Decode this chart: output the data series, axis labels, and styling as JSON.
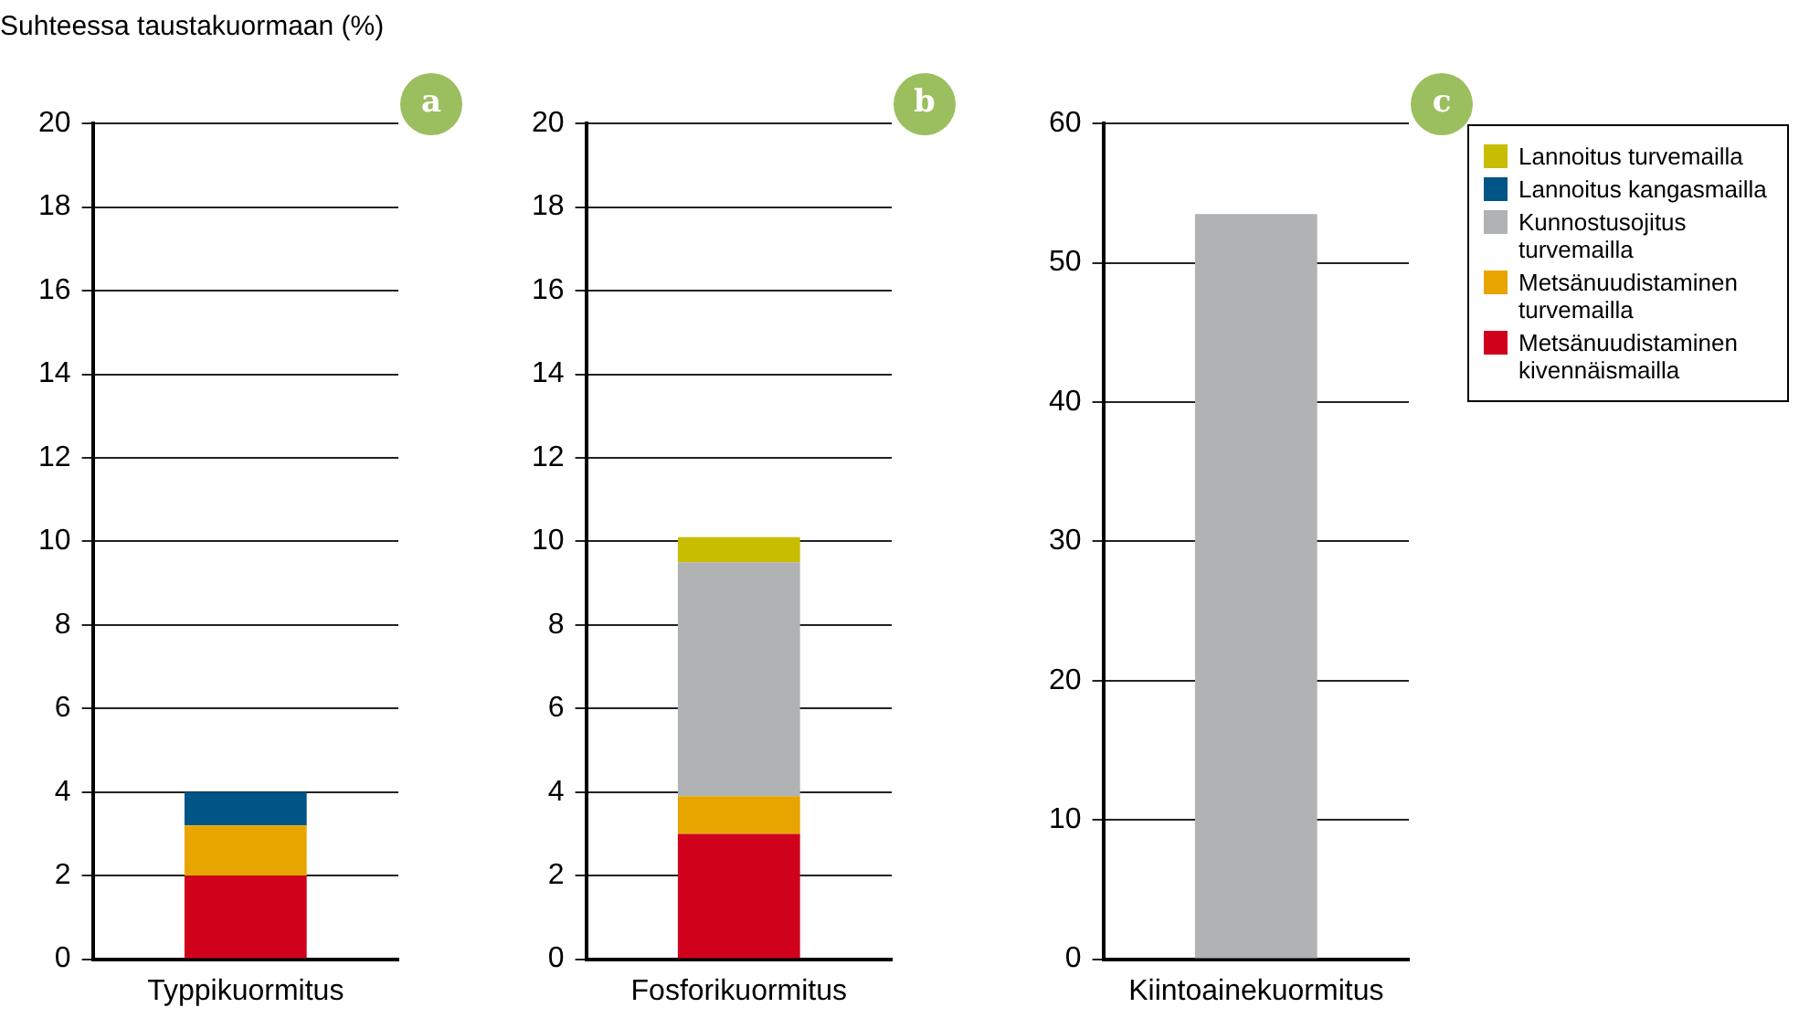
{
  "chart_data": [
    {
      "type": "bar",
      "stacked": true,
      "ylabel": "Suhteessa taustakuormaan (%)",
      "annotations": [
        "a"
      ],
      "categories": [
        "Typpikuormitus"
      ],
      "ylim": [
        0,
        20
      ],
      "yticks": [
        0,
        2,
        4,
        6,
        8,
        10,
        12,
        14,
        16,
        18,
        20
      ],
      "grid": "y",
      "legend": false,
      "series": [
        {
          "color": "#d0021b",
          "values": [
            2
          ]
        },
        {
          "color": "#e8a500",
          "values": [
            1.2
          ]
        },
        {
          "color": "#005587",
          "values": [
            0.8
          ]
        }
      ]
    },
    {
      "type": "bar",
      "stacked": true,
      "annotations": [
        "b"
      ],
      "categories": [
        "Fosforikuormitus"
      ],
      "ylim": [
        0,
        20
      ],
      "yticks": [
        0,
        2,
        4,
        6,
        8,
        10,
        12,
        14,
        16,
        18,
        20
      ],
      "grid": "y",
      "legend": false,
      "series": [
        {
          "color": "#d0021b",
          "values": [
            3
          ]
        },
        {
          "color": "#e8a500",
          "values": [
            0.9
          ]
        },
        {
          "color": "#b1b2b4",
          "values": [
            5.6
          ]
        },
        {
          "color": "#c8bd00",
          "values": [
            0.6
          ]
        }
      ]
    },
    {
      "type": "bar",
      "stacked": true,
      "annotations": [
        "c"
      ],
      "categories": [
        "Kiintoainekuormitus"
      ],
      "ylim": [
        0,
        60
      ],
      "yticks": [
        0,
        10,
        20,
        30,
        40,
        50,
        60
      ],
      "grid": "y",
      "legend": "right",
      "series": [
        {
          "name": "Metsänuudistaminen kivennäismailla",
          "color": "#d0021b",
          "values": [
            null
          ]
        },
        {
          "name": "Metsänuudistaminen turvemailla",
          "color": "#e8a500",
          "values": [
            null
          ]
        },
        {
          "name": "Kunnostusojitus turvemailla",
          "color": "#b1b2b4",
          "values": [
            53.5
          ]
        },
        {
          "name": "Lannoitus kangasmailla",
          "color": "#005587",
          "values": [
            null
          ]
        },
        {
          "name": "Lannoitus turvemailla",
          "color": "#c8bd00",
          "values": [
            null
          ]
        }
      ]
    }
  ]
}
